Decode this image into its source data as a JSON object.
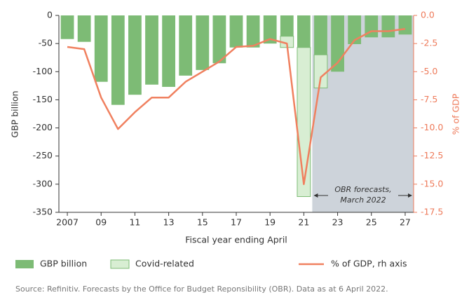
{
  "chart_data": {
    "type": "bar_line",
    "xlabel": "Fiscal year ending April",
    "ylabel": "GBP billion",
    "y2label": "% of GDP",
    "annotation": "OBR forecasts, March 2022",
    "source": "Source: Refinitiv. Forecasts by the Office for Budget Reponsibility (OBR). Data as at 6 April 2022.",
    "categories": [
      "2007",
      null,
      "09",
      null,
      "11",
      null,
      "13",
      null,
      "15",
      null,
      "17",
      null,
      "19",
      null,
      "21",
      null,
      "23",
      null,
      "25",
      null,
      "27"
    ],
    "series": [
      {
        "name": "GBP billion",
        "type": "bar",
        "color": "#7dbb75",
        "values": [
          -42,
          -47,
          -118,
          -159,
          -141,
          -123,
          -127,
          -107,
          -97,
          -85,
          -57,
          -57,
          -50,
          -37,
          -57,
          -70,
          -100,
          -51,
          -39,
          -39,
          -34
        ]
      },
      {
        "name": "Covid-related",
        "type": "bar",
        "color": "#d8eed3",
        "stack": true,
        "values": [
          null,
          null,
          null,
          null,
          null,
          null,
          null,
          null,
          null,
          null,
          null,
          null,
          null,
          -20,
          -265,
          -59,
          null,
          null,
          null,
          null,
          null
        ]
      },
      {
        "name": "% of GDP, rh axis",
        "type": "line",
        "axis": "y2",
        "color": "#f0805f",
        "values": [
          -2.8,
          -3.0,
          -7.3,
          -10.1,
          -8.6,
          -7.3,
          -7.3,
          -5.9,
          -5.0,
          -4.1,
          -2.8,
          -2.7,
          -2.1,
          -2.5,
          -15.0,
          -5.5,
          -4.2,
          -2.2,
          -1.4,
          -1.4,
          -1.2
        ]
      }
    ],
    "ylim": [
      -350,
      0
    ],
    "yticks": [
      0,
      -50,
      -100,
      -150,
      -200,
      -250,
      -300,
      -350
    ],
    "y2lim": [
      -17.5,
      0
    ],
    "y2ticks": [
      {
        "value": 0,
        "label": "0.0"
      },
      -2.5,
      {
        "value": -5,
        "label": "-5.0"
      },
      -7.5,
      {
        "value": -10,
        "label": "-10.0"
      },
      -12.5,
      {
        "value": -15,
        "label": "-15.0"
      },
      -17.5
    ]
  }
}
